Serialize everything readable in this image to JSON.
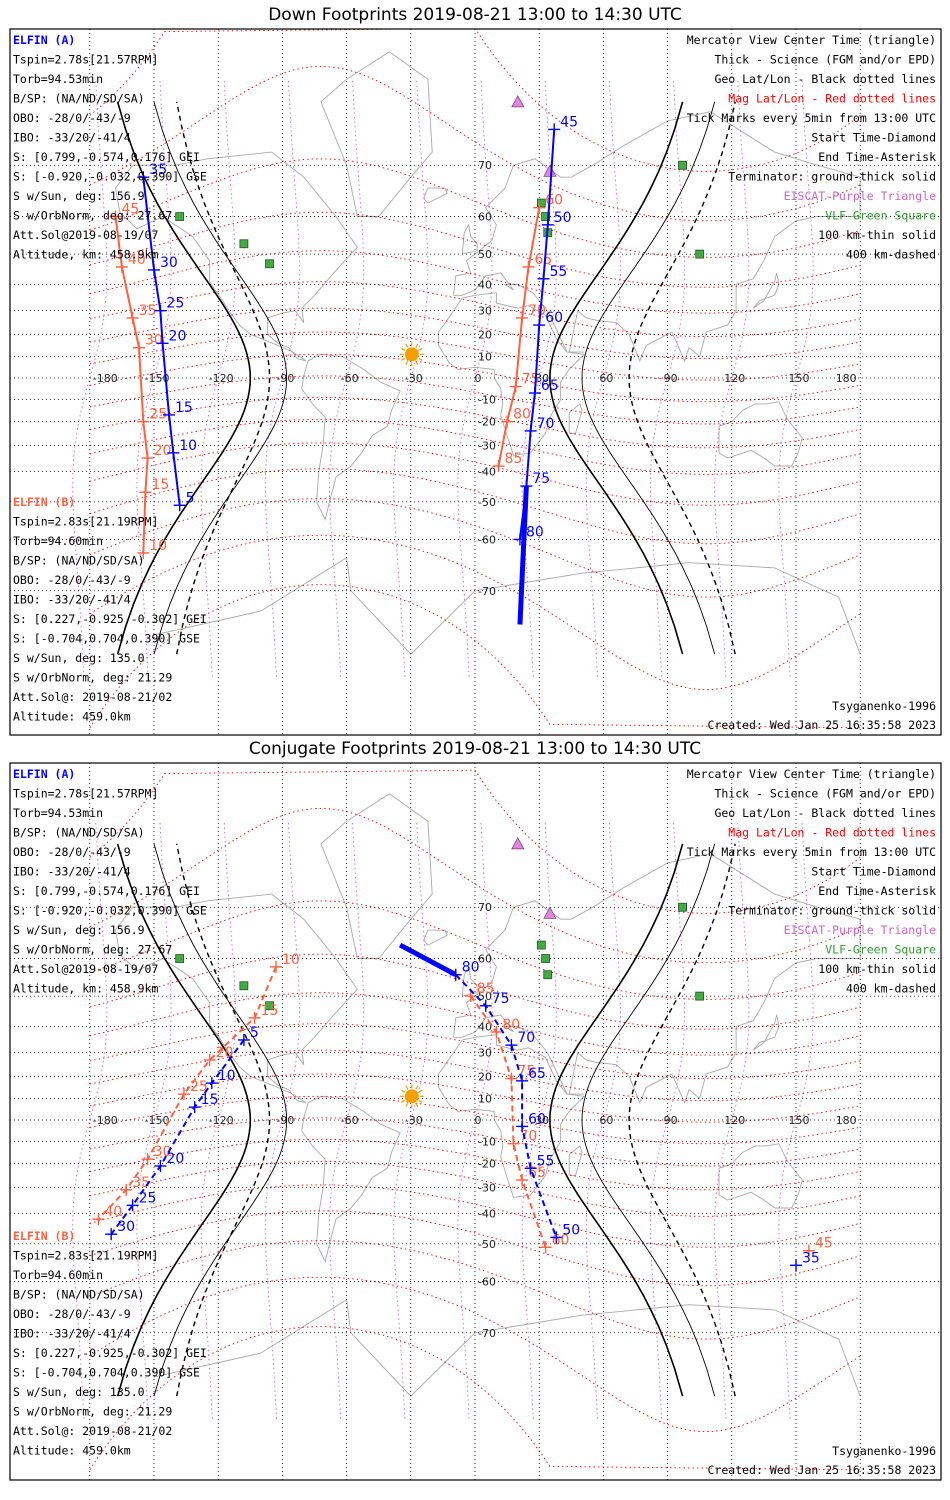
{
  "colors": {
    "elfin_a": "#0000ff",
    "elfin_b": "#ff6040",
    "geo_grid": "#000000",
    "mag_grid": "#ff0000",
    "eiscat": "#cc66cc",
    "vlf": "#339933",
    "coast": "#a8a8a8",
    "sun": "#f5a000"
  },
  "panels": [
    {
      "id": "down",
      "title": "Down Footprints 2019-08-21 13:00 to 14:30 UTC",
      "elfin_a": {
        "label": "ELFIN (A)",
        "lines": [
          "Tspin=2.78s[21.57RPM]",
          "Torb=94.53min",
          "B/SP: (NA/ND/SD/SA)",
          "OBO: -28/0/-43/-9",
          "IBO: -33/20/-41/4",
          "S: [0.799,-0.574,0.176] GEI",
          "S: [-0.920,-0.032,0.390] GSE",
          "S w/Sun, deg: 156.9",
          "S w/OrbNorm, deg: 27.67",
          "Att.Sol@2019-08-19/07",
          "Altitude, km: 458.9km"
        ]
      },
      "elfin_b": {
        "label": "ELFIN (B)",
        "lines": [
          "Tspin=2.83s[21.19RPM]",
          "Torb=94.60min",
          "B/SP: (NA/ND/SD/SA)",
          "OBO: -28/0/-43/-9",
          "IBO: -33/20/-41/4",
          "S: [0.227,-0.925,-0.302] GEI",
          "S: [-0.704,0.704,0.390] GSE",
          "S w/Sun, deg: 135.0",
          "S w/OrbNorm, deg: 21.29",
          "Att.Sol@: 2019-08-21/02",
          "Altitude: 459.0km"
        ]
      },
      "legend": [
        "Mercator View Center Time (triangle)",
        "Thick - Science (FGM and/or EPD)",
        "Geo Lat/Lon - Black dotted lines",
        "Mag Lat/Lon - Red dotted lines",
        "Tick Marks every 5min from 13:00 UTC",
        "Start Time-Diamond",
        "End Time-Asterisk",
        "Terminator: ground-thick solid",
        "EISCAT-Purple Triangle",
        "VLF-Green Square",
        "100 km-thin solid",
        "400 km-dashed"
      ],
      "model": "Tsyganenko-1996",
      "created": "Created: Wed Jan 25 16:35:58 2023",
      "track_a_ticks": [
        {
          "label": "45",
          "lon": 37,
          "lat": 75
        },
        {
          "label": "50",
          "lon": 34,
          "lat": 58
        },
        {
          "label": "55",
          "lon": 32,
          "lat": 42
        },
        {
          "label": "60",
          "lon": 30,
          "lat": 24
        },
        {
          "label": "65",
          "lon": 28,
          "lat": -7
        },
        {
          "label": "70",
          "lon": 26,
          "lat": -24
        },
        {
          "label": "75",
          "lon": 24,
          "lat": -45
        },
        {
          "label": "80",
          "lon": 21,
          "lat": -60
        },
        {
          "label": "5",
          "lon": -138,
          "lat": -51
        },
        {
          "label": "10",
          "lon": -141,
          "lat": -33
        },
        {
          "label": "15",
          "lon": -143,
          "lat": -17
        },
        {
          "label": "20",
          "lon": -146,
          "lat": 16
        },
        {
          "label": "25",
          "lon": -147,
          "lat": 30
        },
        {
          "label": "30",
          "lon": -150,
          "lat": 45
        },
        {
          "label": "35",
          "lon": -155,
          "lat": 68
        }
      ],
      "track_b_ticks": [
        {
          "label": "60",
          "lon": 30,
          "lat": 62
        },
        {
          "label": "65",
          "lon": 25,
          "lat": 46
        },
        {
          "label": "70",
          "lon": 22,
          "lat": 27
        },
        {
          "label": "75",
          "lon": 19,
          "lat": -4
        },
        {
          "label": "80",
          "lon": 15,
          "lat": -20
        },
        {
          "label": "85",
          "lon": 11,
          "lat": -38
        },
        {
          "label": "10",
          "lon": -155,
          "lat": -63
        },
        {
          "label": "15",
          "lon": -154,
          "lat": -47
        },
        {
          "label": "20",
          "lon": -153,
          "lat": -35
        },
        {
          "label": "25",
          "lon": -155,
          "lat": -20
        },
        {
          "label": "30",
          "lon": -157,
          "lat": 14
        },
        {
          "label": "35",
          "lon": -160,
          "lat": 27
        },
        {
          "label": "40",
          "lon": -165,
          "lat": 46
        },
        {
          "label": "45",
          "lon": -168,
          "lat": 60
        }
      ]
    },
    {
      "id": "conj",
      "title": "Conjugate Footprints 2019-08-21 13:00 to 14:30 UTC",
      "elfin_a": {
        "label": "ELFIN (A)",
        "lines": [
          "Tspin=2.78s[21.57RPM]",
          "Torb=94.53min",
          "B/SP: (NA/ND/SD/SA)",
          "OBO: -28/0/-43/-9",
          "IBO: -33/20/-41/4",
          "S: [0.799,-0.574,0.176] GEI",
          "S: [-0.920,-0.032,0.390] GSE",
          "S w/Sun, deg: 156.9",
          "S w/OrbNorm, deg: 27.67",
          "Att.Sol@2019-08-19/07",
          "Altitude, km: 458.9km"
        ]
      },
      "elfin_b": {
        "label": "ELFIN (B)",
        "lines": [
          "Tspin=2.83s[21.19RPM]",
          "Torb=94.60min",
          "B/SP: (NA/ND/SD/SA)",
          "OBO: -28/0/-43/-9",
          "IBO: -33/20/-41/4",
          "S: [0.227,-0.925,-0.302] GEI",
          "S: [-0.704,0.704,0.390] GSE",
          "S w/Sun, deg: 135.0",
          "S w/OrbNorm, deg: 21.29",
          "Att.Sol@: 2019-08-21/02",
          "Altitude: 459.0km"
        ]
      },
      "legend": [
        "Mercator View Center Time (triangle)",
        "Thick - Science (FGM and/or EPD)",
        "Geo Lat/Lon - Black dotted lines",
        "Mag Lat/Lon - Red dotted lines",
        "Tick Marks every 5min from 13:00 UTC",
        "Start Time-Diamond",
        "End Time-Asterisk",
        "Terminator: ground-thick solid",
        "EISCAT-Purple Triangle",
        "VLF-Green Square",
        "100 km-thin solid",
        "400 km-dashed"
      ],
      "model": "Tsyganenko-1996",
      "created": "Created: Wed Jan 25 16:35:58 2023",
      "track_a_ticks": [
        {
          "label": "80",
          "lon": -9,
          "lat": 56
        },
        {
          "label": "75",
          "lon": 5,
          "lat": 47
        },
        {
          "label": "70",
          "lon": 17,
          "lat": 33
        },
        {
          "label": "65",
          "lon": 22,
          "lat": 18
        },
        {
          "label": "60",
          "lon": 22,
          "lat": -3
        },
        {
          "label": "55",
          "lon": 26,
          "lat": -22
        },
        {
          "label": "50",
          "lon": 38,
          "lat": -48
        },
        {
          "label": "5",
          "lon": -108,
          "lat": 35
        },
        {
          "label": "10",
          "lon": -123,
          "lat": 17
        },
        {
          "label": "15",
          "lon": -131,
          "lat": 6
        },
        {
          "label": "20",
          "lon": -147,
          "lat": -21
        },
        {
          "label": "25",
          "lon": -160,
          "lat": -37
        },
        {
          "label": "30",
          "lon": -170,
          "lat": -47
        },
        {
          "label": "35",
          "lon": 150,
          "lat": -56
        }
      ],
      "track_b_ticks": [
        {
          "label": "85",
          "lon": -2,
          "lat": 50
        },
        {
          "label": "80",
          "lon": 10,
          "lat": 38
        },
        {
          "label": "75",
          "lon": 17,
          "lat": 19
        },
        {
          "label": "70",
          "lon": 18,
          "lat": -11
        },
        {
          "label": "65",
          "lon": 22,
          "lat": -27
        },
        {
          "label": "60",
          "lon": 33,
          "lat": -51
        },
        {
          "label": "10",
          "lon": -93,
          "lat": 58
        },
        {
          "label": "15",
          "lon": -103,
          "lat": 43
        },
        {
          "label": "20",
          "lon": -124,
          "lat": 27
        },
        {
          "label": "25",
          "lon": -136,
          "lat": 12
        },
        {
          "label": "30",
          "lon": -153,
          "lat": -18
        },
        {
          "label": "35",
          "lon": -163,
          "lat": -31
        },
        {
          "label": "40",
          "lon": -176,
          "lat": -42
        },
        {
          "label": "45",
          "lon": 156,
          "lat": -52
        }
      ]
    }
  ],
  "lon_ticks": [
    "-180",
    "-150",
    "-120",
    "-90",
    "-60",
    "-30",
    "0",
    "30",
    "60",
    "90",
    "120",
    "150",
    "180"
  ],
  "lat_ticks": [
    "70",
    "60",
    "50",
    "40",
    "30",
    "20",
    "10",
    "0",
    "-10",
    "-20",
    "-30",
    "-40",
    "-50",
    "-60",
    "-70"
  ]
}
